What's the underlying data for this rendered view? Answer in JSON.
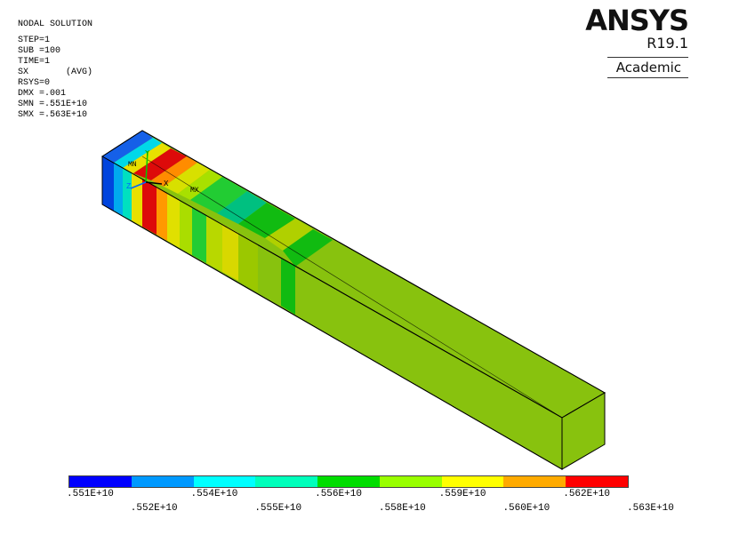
{
  "info": {
    "title": "NODAL SOLUTION",
    "step": "STEP=1",
    "sub": "SUB =100",
    "time": "TIME=1",
    "sx": "SX       (AVG)",
    "rsys": "RSYS=0",
    "dmx": "DMX =.001",
    "smn": "SMN =.551E+10",
    "smx": "SMX =.563E+10"
  },
  "brand": {
    "name": "ANSYS",
    "version": "R19.1",
    "license": "Academic"
  },
  "markers": {
    "min": "MN",
    "max": "MX"
  },
  "axes": {
    "x": "X",
    "y": "Y",
    "z": "Z"
  },
  "legend": {
    "colors": [
      "#0000ff",
      "#0099ff",
      "#00ffff",
      "#00ffbb",
      "#00dd00",
      "#99ff00",
      "#ffff00",
      "#ffaa00",
      "#ff0000"
    ],
    "top_labels": [
      ".551E+10",
      ".554E+10",
      ".556E+10",
      ".559E+10",
      ".562E+10"
    ],
    "bottom_labels": [
      ".552E+10",
      ".555E+10",
      ".558E+10",
      ".560E+10",
      ".563E+10"
    ]
  }
}
